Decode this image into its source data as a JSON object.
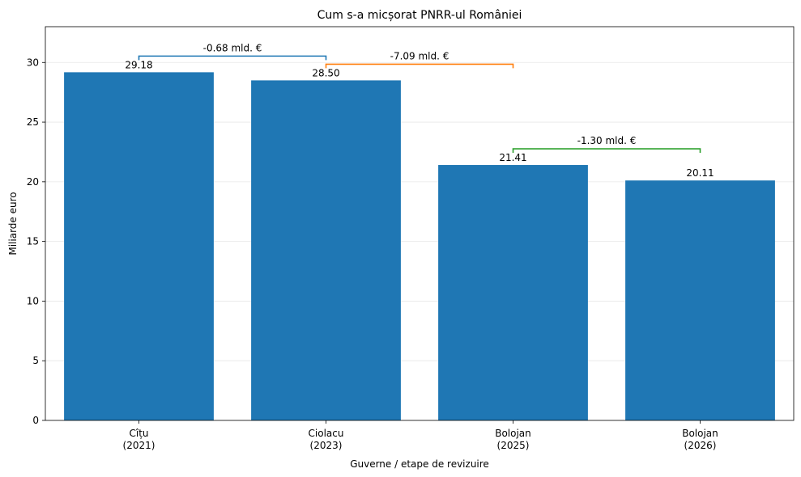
{
  "chart_data": {
    "type": "bar",
    "title": "Cum s-a micșorat PNRR-ul României",
    "xlabel": "Guverne / etape de revizuire",
    "ylabel": "Miliarde euro",
    "categories": [
      [
        "Cîțu",
        "(2021)"
      ],
      [
        "Ciolacu",
        "(2023)"
      ],
      [
        "Bolojan",
        "(2025)"
      ],
      [
        "Bolojan",
        "(2026)"
      ]
    ],
    "values": [
      29.18,
      28.5,
      21.41,
      20.11
    ],
    "value_labels": [
      "29.18",
      "28.50",
      "21.41",
      "20.11"
    ],
    "ylim": [
      0,
      33
    ],
    "yticks": [
      0,
      5,
      10,
      15,
      20,
      25,
      30
    ],
    "grid": "y",
    "bar_color": "#1f77b4",
    "differences": [
      {
        "from": 0,
        "to": 1,
        "label": "-0.68 mld. €",
        "color": "#1f77b4"
      },
      {
        "from": 1,
        "to": 2,
        "label": "-7.09 mld. €",
        "color": "#ff7f0e"
      },
      {
        "from": 2,
        "to": 3,
        "label": "-1.30 mld. €",
        "color": "#2ca02c"
      }
    ]
  }
}
